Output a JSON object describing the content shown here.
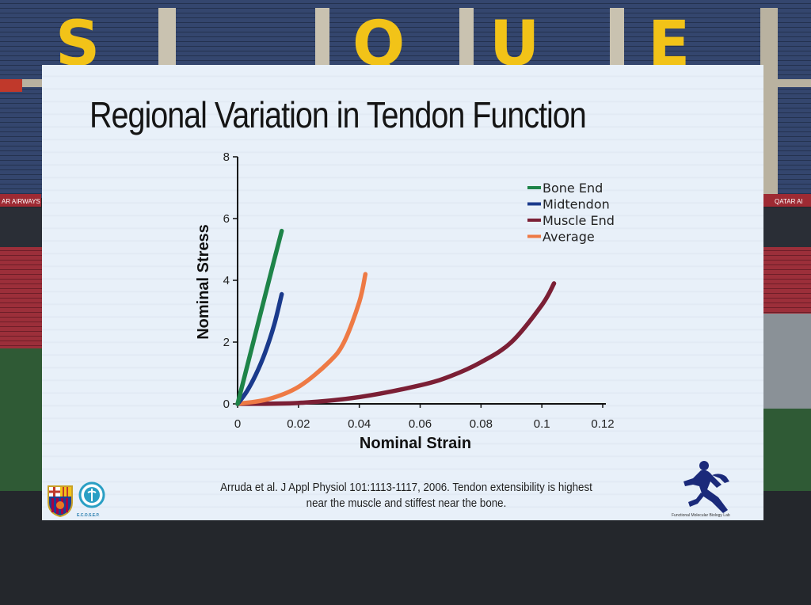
{
  "slide": {
    "title": "Regional Variation in Tendon Function",
    "citation_line1": "Arruda et al. J Appl Physiol 101:1113-1117, 2006. Tendon extensibility is highest",
    "citation_line2": "near the muscle and stiffest near the bone.",
    "lab_label": "Functional Molecular Biology Lab",
    "ecosep_label": "E.C.O.S.E.P."
  },
  "background": {
    "stand_letters": [
      "S",
      "Q",
      "U",
      "E"
    ],
    "left_banner": "AR AIRWAYS",
    "right_banner": "QATAR AI"
  },
  "colors": {
    "bone_end": "#1e8449",
    "midtendon": "#1a3a8c",
    "muscle_end": "#7b1f35",
    "average": "#ee7a45",
    "axis": "#111111",
    "seat_blue": "#3a4d78",
    "seat_yellow": "#f2c318",
    "seat_red": "#a3313c"
  },
  "chart_data": {
    "type": "line",
    "xlabel": "Nominal Strain",
    "ylabel": "Nominal Stress",
    "xlim": [
      0,
      0.12
    ],
    "ylim": [
      0,
      8
    ],
    "xticks": [
      0,
      0.02,
      0.04,
      0.06,
      0.08,
      0.1,
      0.12
    ],
    "xtick_labels": [
      "0",
      "0.02",
      "0.04",
      "0.06",
      "0.08",
      "0.1",
      "0.12"
    ],
    "yticks": [
      0,
      2,
      4,
      6,
      8
    ],
    "ytick_labels": [
      "0",
      "2",
      "4",
      "6",
      "8"
    ],
    "grid": false,
    "legend_position": "top-right",
    "series": [
      {
        "name": "Bone End",
        "color_key": "bone_end",
        "x": [
          0,
          0.004,
          0.008,
          0.012,
          0.0145
        ],
        "y": [
          0,
          1.55,
          3.1,
          4.65,
          5.6
        ]
      },
      {
        "name": "Midtendon",
        "color_key": "midtendon",
        "x": [
          0,
          0.003,
          0.006,
          0.009,
          0.012,
          0.0145
        ],
        "y": [
          0,
          0.4,
          0.95,
          1.65,
          2.55,
          3.55
        ]
      },
      {
        "name": "Muscle End",
        "color_key": "muscle_end",
        "x": [
          0,
          0.02,
          0.04,
          0.06,
          0.07,
          0.08,
          0.09,
          0.1,
          0.104
        ],
        "y": [
          0,
          0.03,
          0.22,
          0.6,
          0.9,
          1.35,
          2.0,
          3.2,
          3.9
        ]
      },
      {
        "name": "Average",
        "color_key": "average",
        "x": [
          0,
          0.01,
          0.02,
          0.03,
          0.035,
          0.04,
          0.042
        ],
        "y": [
          0,
          0.15,
          0.55,
          1.35,
          2.0,
          3.3,
          4.2
        ]
      }
    ]
  }
}
